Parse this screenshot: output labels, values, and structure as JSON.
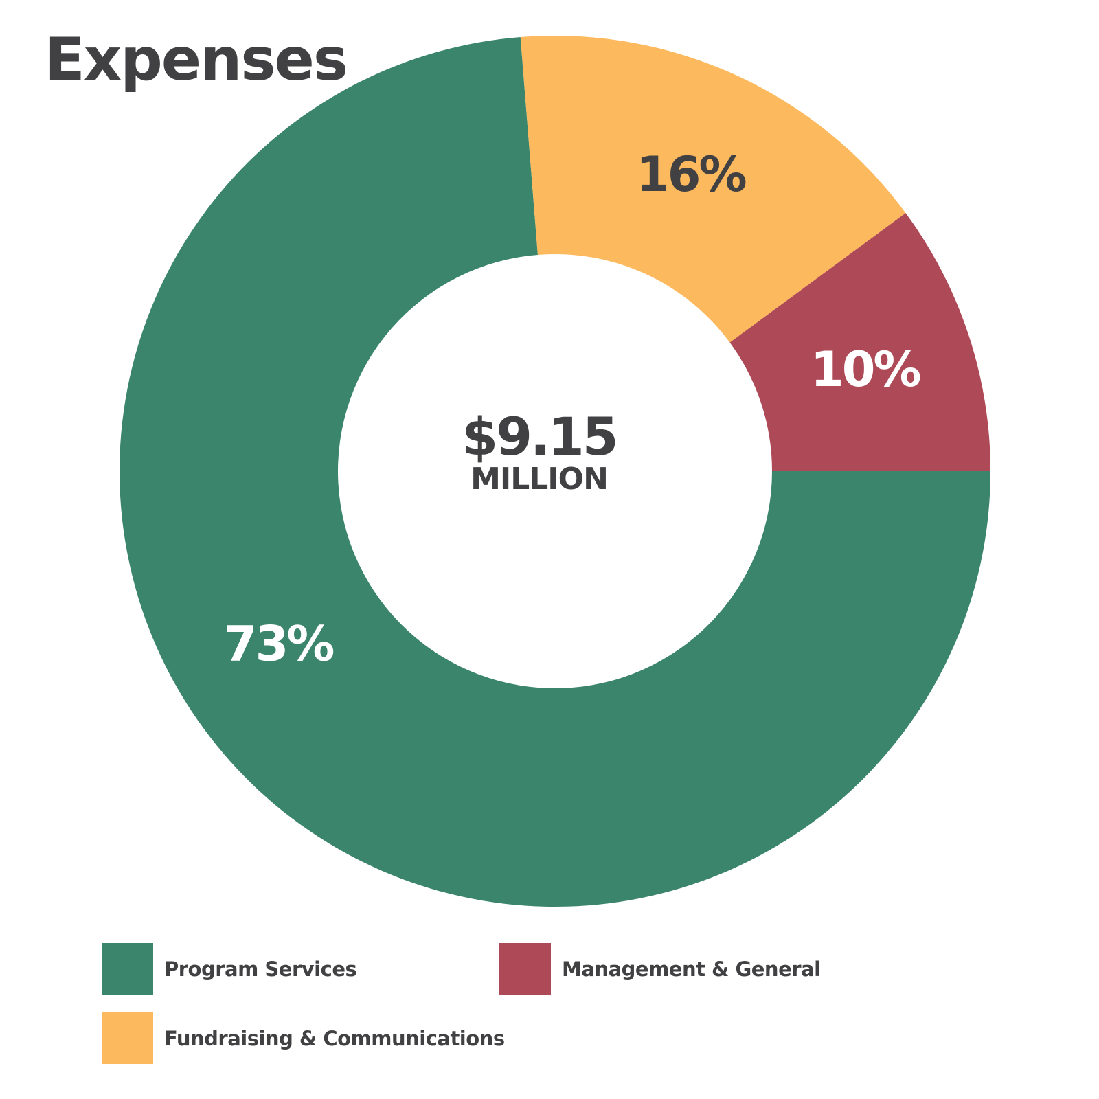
{
  "chart_data": {
    "type": "pie",
    "title": "Expenses",
    "categories": [
      "Program Services",
      "Fundraising & Communications",
      "Management & General"
    ],
    "values": [
      73,
      16,
      10
    ],
    "value_labels": [
      "73%",
      "16%",
      "10%"
    ],
    "colors": [
      "#3b856c",
      "#fcb95e",
      "#ae4a58"
    ],
    "label_colors": [
      "#ffffff",
      "#414042",
      "#ffffff"
    ],
    "center_value": "$9.15",
    "center_unit": "MILLION",
    "legend_position": "bottom"
  }
}
